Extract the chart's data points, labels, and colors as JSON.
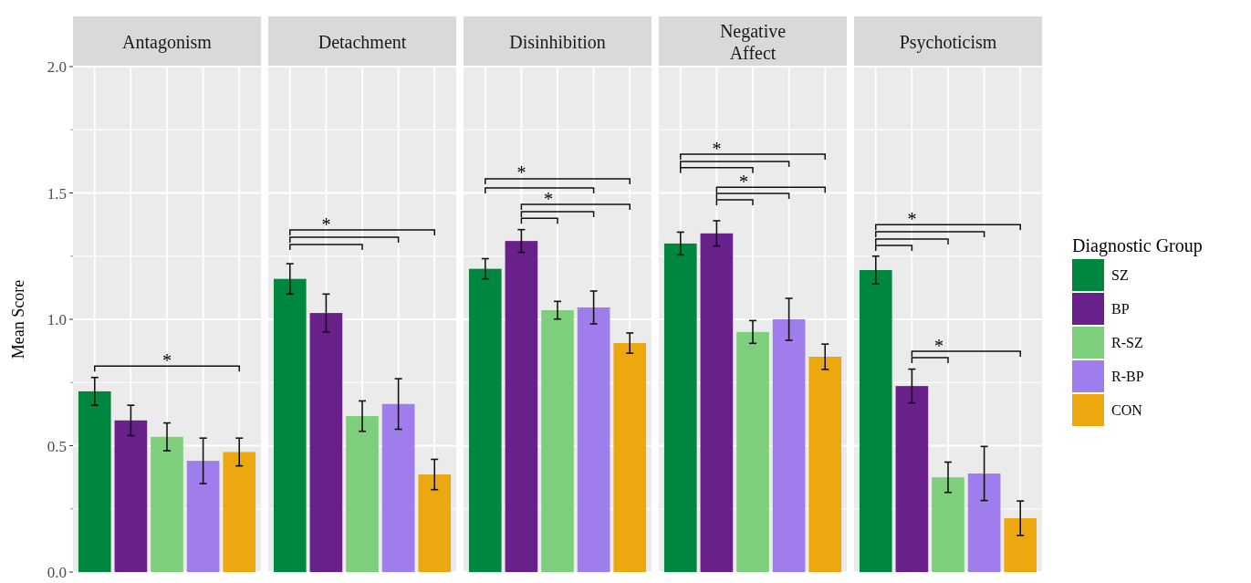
{
  "chart_data": {
    "type": "bar",
    "ylabel": "Mean Score",
    "legend_title": "Diagnostic Group",
    "legend": "right",
    "grid": true,
    "categories": [
      "Antagonism",
      "Detachment",
      "Disinhibition",
      "Negative\nAffect",
      "Psychoticism"
    ],
    "ylim": [
      0,
      2.0
    ],
    "yticks": [
      {
        "value": 0,
        "label": "0.0"
      },
      {
        "value": 0.25,
        "label": null
      },
      0.5,
      {
        "value": 0.75,
        "label": null
      },
      {
        "value": 1,
        "label": "1.0"
      },
      {
        "value": 1.25,
        "label": null
      },
      1.5,
      {
        "value": 1.75,
        "label": null
      },
      {
        "value": 2,
        "label": "2.0"
      }
    ],
    "annotations": [
      "*",
      "*",
      "*",
      "*",
      "*",
      "*",
      "*",
      "*"
    ],
    "series": [
      {
        "name": "SZ",
        "color": "#00873f",
        "values": [
          0.715,
          1.16,
          1.2,
          1.3,
          1.195
        ],
        "errors": [
          0.055,
          0.06,
          0.04,
          0.045,
          0.055
        ]
      },
      {
        "name": "BP",
        "color": "#68208a",
        "values": [
          0.6,
          1.025,
          1.31,
          1.34,
          0.736
        ],
        "errors": [
          0.06,
          0.075,
          0.045,
          0.05,
          0.067
        ]
      },
      {
        "name": "R-SZ",
        "color": "#7dcf7b",
        "values": [
          0.535,
          0.617,
          1.036,
          0.95,
          0.375
        ],
        "errors": [
          0.055,
          0.06,
          0.035,
          0.045,
          0.06
        ]
      },
      {
        "name": "R-BP",
        "color": "#a07ded",
        "values": [
          0.44,
          0.665,
          1.047,
          1.0,
          0.39
        ],
        "errors": [
          0.09,
          0.1,
          0.065,
          0.083,
          0.107
        ]
      },
      {
        "name": "CON",
        "color": "#eea80f",
        "values": [
          0.475,
          0.386,
          0.906,
          0.852,
          0.213
        ],
        "errors": [
          0.055,
          0.06,
          0.04,
          0.05,
          0.068
        ]
      }
    ]
  }
}
